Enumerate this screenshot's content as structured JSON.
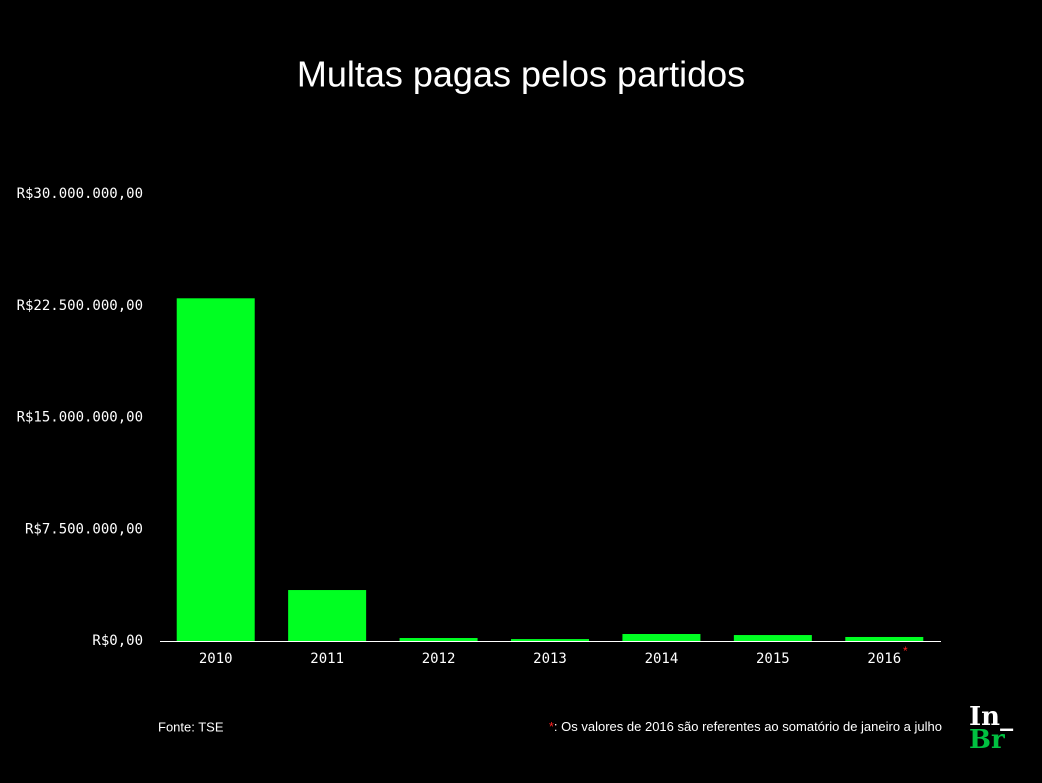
{
  "chart_data": {
    "type": "bar",
    "title": "Multas pagas pelos partidos",
    "categories": [
      "2010",
      "2011",
      "2012",
      "2013",
      "2014",
      "2015",
      "2016"
    ],
    "values": [
      23000000,
      3420000,
      200000,
      130000,
      470000,
      400000,
      270000
    ],
    "color": "#00ff22",
    "ylim": [
      0,
      30000000
    ],
    "yticks": [
      {
        "value": 0,
        "label": "R$0,00"
      },
      {
        "value": 7500000,
        "label": "R$7.500.000,00"
      },
      {
        "value": 15000000,
        "label": "R$15.000.000,00"
      },
      {
        "value": 22500000,
        "label": "R$22.500.000,00"
      },
      {
        "value": 30000000,
        "label": "R$30.000.000,00"
      }
    ],
    "grid": false,
    "marker": "*",
    "source": "Fonte: TSE",
    "footnote": ": Os valores de 2016 são referentes ao somatório de janeiro a julho",
    "logo": [
      "In_",
      "Br"
    ]
  }
}
